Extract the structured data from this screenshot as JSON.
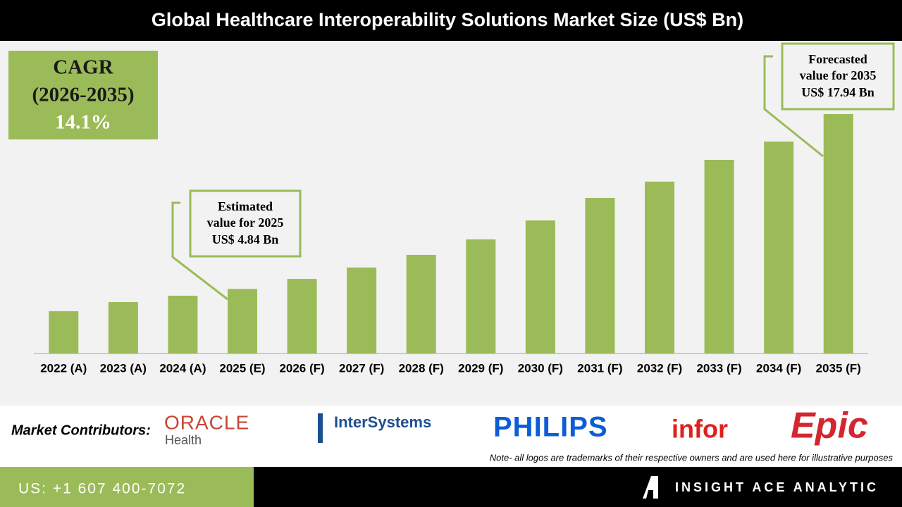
{
  "chart_data": {
    "type": "bar",
    "title": "Global Healthcare Interoperability Solutions Market Size (US$ Bn)",
    "categories": [
      "2022 (A)",
      "2023 (A)",
      "2024 (A)",
      "2025 (E)",
      "2026 (F)",
      "2027 (F)",
      "2028 (F)",
      "2029 (F)",
      "2030 (F)",
      "2031 (F)",
      "2032 (F)",
      "2033 (F)",
      "2034 (F)",
      "2035 (F)"
    ],
    "values": [
      3.17,
      3.85,
      4.33,
      4.84,
      5.59,
      6.44,
      7.39,
      8.55,
      9.97,
      11.66,
      12.88,
      14.51,
      15.88,
      17.94
    ],
    "color": "#9bbb59",
    "cagr": {
      "label": "CAGR",
      "period": "(2026-2035)",
      "value": "14.1%"
    },
    "annotations": [
      {
        "lines": [
          "Estimated",
          "value for 2025",
          "US$ 4.84 Bn"
        ]
      },
      {
        "lines": [
          "Forecasted",
          "value for 2035",
          "US$ 17.94 Bn"
        ]
      }
    ]
  },
  "contributors": {
    "label": "Market Contributors:",
    "logos": [
      "ORACLE",
      "Health",
      "InterSystems",
      "PHILIPS",
      "infor",
      "Epic"
    ],
    "note": "Note- all logos are trademarks of their respective owners and are used here for illustrative purposes"
  },
  "footer": {
    "phone": "US: +1 607 400-7072",
    "brand": "INSIGHT ACE ANALYTIC"
  }
}
